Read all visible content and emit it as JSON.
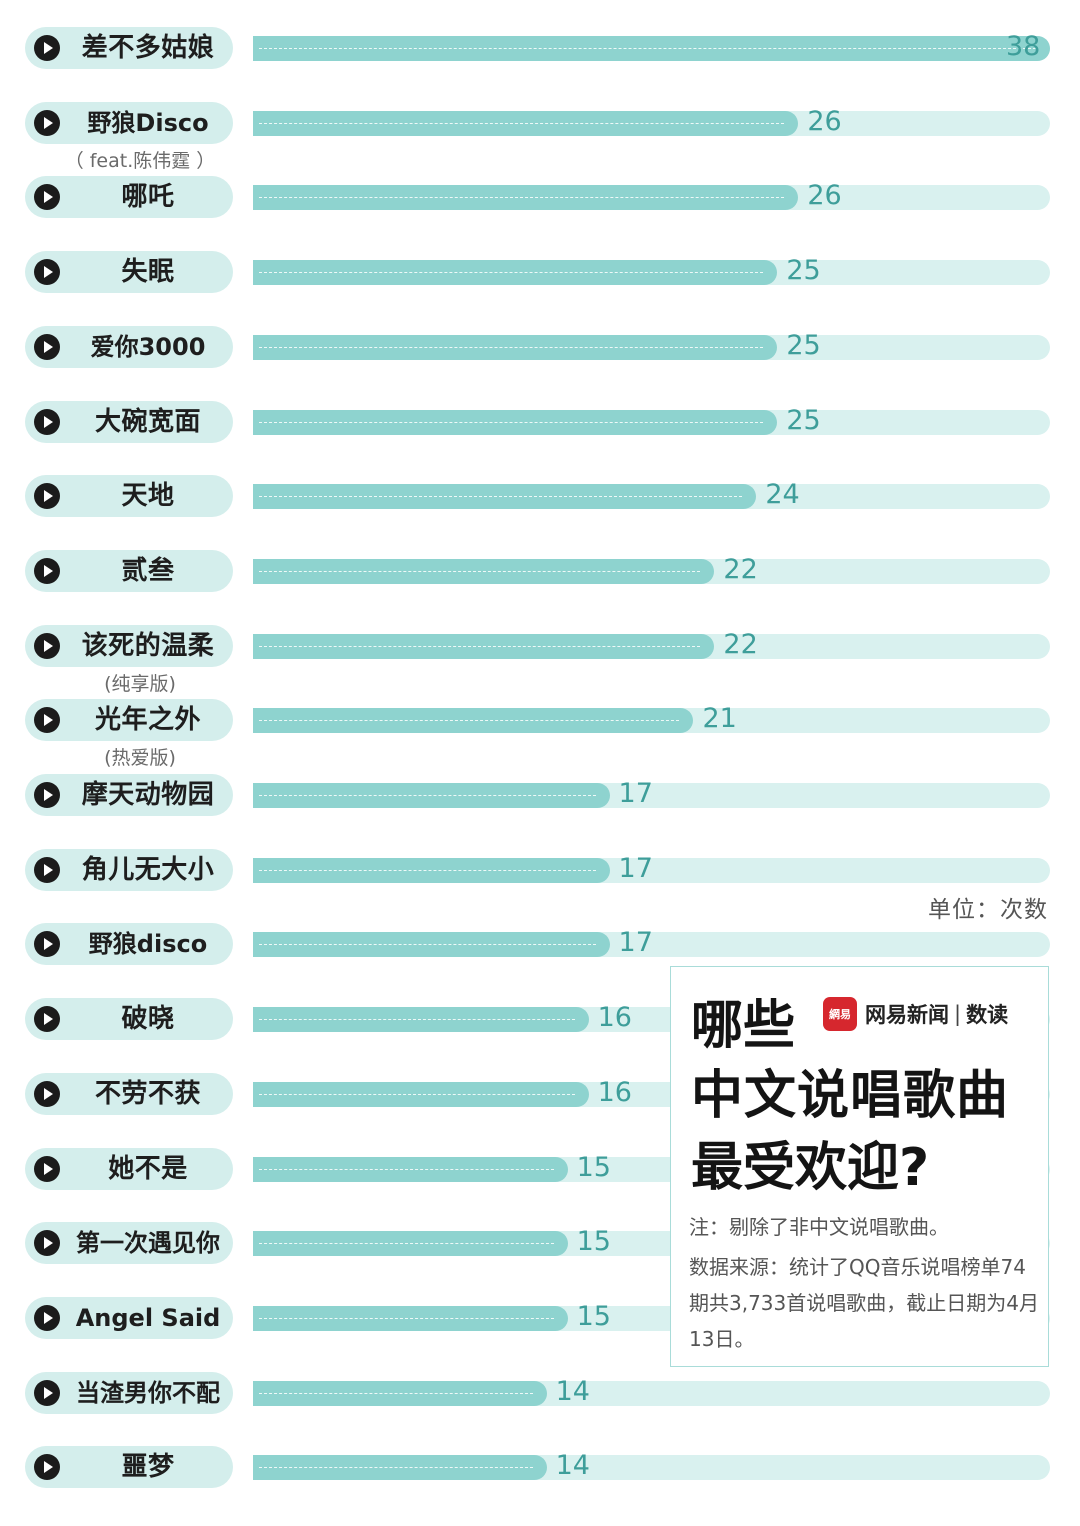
{
  "chart_data": {
    "type": "bar",
    "orientation": "horizontal",
    "unit": "单位：次数",
    "xlim": [
      0,
      38
    ],
    "categories": [
      "差不多姑娘",
      "野狼Disco",
      "哪吒",
      "失眠",
      "爱你3000",
      "大碗宽面",
      "天地",
      "贰叁",
      "该死的温柔",
      "光年之外",
      "摩天动物园",
      "角儿无大小",
      "野狼disco",
      "破晓",
      "不劳不获",
      "她不是",
      "第一次遇见你",
      "Angel Said",
      "当渣男你不配",
      "噩梦"
    ],
    "subtitles": [
      "",
      "（ feat.陈伟霆 ）",
      "",
      "",
      "",
      "",
      "",
      "",
      "(纯享版)",
      "(热爱版)",
      "",
      "",
      "",
      "",
      "",
      "",
      "",
      "",
      "",
      ""
    ],
    "values": [
      38,
      26,
      26,
      25,
      25,
      25,
      24,
      22,
      22,
      21,
      17,
      17,
      17,
      16,
      16,
      15,
      15,
      15,
      14,
      14
    ]
  },
  "panel": {
    "title_line1": "哪些",
    "title_line2": "中文说唱歌曲",
    "title_line3": "最受欢迎?",
    "brand_logo": "網易",
    "brand_name": "网易新闻",
    "brand_sep": "|",
    "brand_sub": "数读",
    "note": "注：剔除了非中文说唱歌曲。",
    "source": "数据来源：统计了QQ音乐说唱榜单74期共3,733首说唱歌曲，截止日期为4月13日。"
  },
  "colors": {
    "pill": "#d4eeec",
    "track": "#d9f1ef",
    "bar": "#8ed3cf",
    "value_text": "#3e9e9a",
    "panel_border": "#a9dcd9",
    "logo": "#d6272e"
  },
  "icons": {
    "play": "play-icon"
  }
}
